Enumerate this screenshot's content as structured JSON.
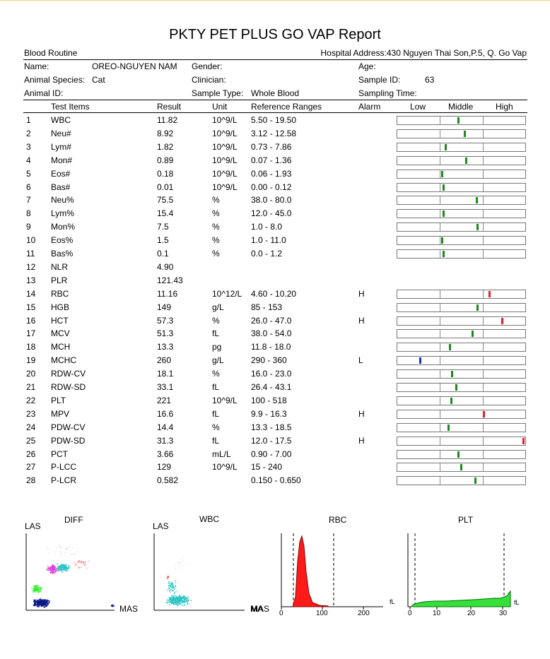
{
  "report": {
    "title": "PKTY PET PLUS GO VAP Report",
    "section": "Blood Routine",
    "hospital_address": "Hospital Address:430 Nguyen Thai Son,P.5, Q. Go Vap"
  },
  "patient": {
    "name_label": "Name:",
    "name_value": "OREO-NGUYEN NAM",
    "gender_label": "Gender:",
    "gender_value": "",
    "age_label": "Age:",
    "age_value": "",
    "species_label": "Animal Species:",
    "species_value": "Cat",
    "clinician_label": "Clinician:",
    "clinician_value": "",
    "sample_id_label": "Sample ID:",
    "sample_id_value": "63",
    "animal_id_label": "Animal ID:",
    "animal_id_value": "",
    "sample_type_label": "Sample Type:",
    "sample_type_value": "Whole Blood",
    "sampling_time_label": "Sampling Time:",
    "sampling_time_value": ""
  },
  "table": {
    "headers": {
      "test_items": "Test Items",
      "result": "Result",
      "unit": "Unit",
      "reference": "Reference Ranges",
      "alarm": "Alarm",
      "low": "Low",
      "middle": "Middle",
      "high": "High"
    },
    "rows": [
      {
        "no": "1",
        "item": "WBC",
        "result": "11.82",
        "unit": "10^9/L",
        "ref": "5.50 - 19.50",
        "alarm": "",
        "pos": 0.48,
        "color": "#1a8a1a"
      },
      {
        "no": "2",
        "item": "Neu#",
        "result": "8.92",
        "unit": "10^9/L",
        "ref": "3.12 - 12.58",
        "alarm": "",
        "pos": 0.53,
        "color": "#1a8a1a"
      },
      {
        "no": "3",
        "item": "Lym#",
        "result": "1.82",
        "unit": "10^9/L",
        "ref": "0.73 - 7.86",
        "alarm": "",
        "pos": 0.38,
        "color": "#1a8a1a"
      },
      {
        "no": "4",
        "item": "Mon#",
        "result": "0.89",
        "unit": "10^9/L",
        "ref": "0.07 - 1.36",
        "alarm": "",
        "pos": 0.54,
        "color": "#1a8a1a"
      },
      {
        "no": "5",
        "item": "Eos#",
        "result": "0.18",
        "unit": "10^9/L",
        "ref": "0.06 - 1.93",
        "alarm": "",
        "pos": 0.35,
        "color": "#1a8a1a"
      },
      {
        "no": "6",
        "item": "Bas#",
        "result": "0.01",
        "unit": "10^9/L",
        "ref": "0.00 - 0.12",
        "alarm": "",
        "pos": 0.36,
        "color": "#1a8a1a"
      },
      {
        "no": "7",
        "item": "Neu%",
        "result": "75.5",
        "unit": "%",
        "ref": "38.0 - 80.0",
        "alarm": "",
        "pos": 0.62,
        "color": "#1a8a1a"
      },
      {
        "no": "8",
        "item": "Lym%",
        "result": "15.4",
        "unit": "%",
        "ref": "12.0 - 45.0",
        "alarm": "",
        "pos": 0.36,
        "color": "#1a8a1a"
      },
      {
        "no": "9",
        "item": "Mon%",
        "result": "7.5",
        "unit": "%",
        "ref": "1.0 - 8.0",
        "alarm": "",
        "pos": 0.63,
        "color": "#1a8a1a"
      },
      {
        "no": "10",
        "item": "Eos%",
        "result": "1.5",
        "unit": "%",
        "ref": "1.0 - 11.0",
        "alarm": "",
        "pos": 0.35,
        "color": "#1a8a1a"
      },
      {
        "no": "11",
        "item": "Bas%",
        "result": "0.1",
        "unit": "%",
        "ref": "0.0 - 1.2",
        "alarm": "",
        "pos": 0.36,
        "color": "#1a8a1a"
      },
      {
        "no": "12",
        "item": "NLR",
        "result": "4.90",
        "unit": "",
        "ref": "",
        "alarm": "",
        "pos": null,
        "color": ""
      },
      {
        "no": "13",
        "item": "PLR",
        "result": "121.43",
        "unit": "",
        "ref": "",
        "alarm": "",
        "pos": null,
        "color": ""
      },
      {
        "no": "14",
        "item": "RBC",
        "result": "11.16",
        "unit": "10^12/L",
        "ref": "4.60 - 10.20",
        "alarm": "H",
        "pos": 0.72,
        "color": "#e0202a"
      },
      {
        "no": "15",
        "item": "HGB",
        "result": "149",
        "unit": "g/L",
        "ref": "85 - 153",
        "alarm": "",
        "pos": 0.63,
        "color": "#1a8a1a"
      },
      {
        "no": "16",
        "item": "HCT",
        "result": "57.3",
        "unit": "%",
        "ref": "26.0 - 47.0",
        "alarm": "H",
        "pos": 0.82,
        "color": "#e0202a"
      },
      {
        "no": "17",
        "item": "MCV",
        "result": "51.3",
        "unit": "fL",
        "ref": "38.0 - 54.0",
        "alarm": "",
        "pos": 0.59,
        "color": "#1a8a1a"
      },
      {
        "no": "18",
        "item": "MCH",
        "result": "13.3",
        "unit": "pg",
        "ref": "11.8 - 18.0",
        "alarm": "",
        "pos": 0.41,
        "color": "#1a8a1a"
      },
      {
        "no": "19",
        "item": "MCHC",
        "result": "260",
        "unit": "g/L",
        "ref": "290 - 360",
        "alarm": "L",
        "pos": 0.18,
        "color": "#1530c8"
      },
      {
        "no": "20",
        "item": "RDW-CV",
        "result": "18.1",
        "unit": "%",
        "ref": "16.0 - 23.0",
        "alarm": "",
        "pos": 0.43,
        "color": "#1a8a1a"
      },
      {
        "no": "21",
        "item": "RDW-SD",
        "result": "33.1",
        "unit": "fL",
        "ref": "26.4 - 43.1",
        "alarm": "",
        "pos": 0.46,
        "color": "#1a8a1a"
      },
      {
        "no": "22",
        "item": "PLT",
        "result": "221",
        "unit": "10^9/L",
        "ref": "100 - 518",
        "alarm": "",
        "pos": 0.42,
        "color": "#1a8a1a"
      },
      {
        "no": "23",
        "item": "MPV",
        "result": "16.6",
        "unit": "fL",
        "ref": "9.9 - 16.3",
        "alarm": "H",
        "pos": 0.68,
        "color": "#e0202a"
      },
      {
        "no": "24",
        "item": "PDW-CV",
        "result": "14.4",
        "unit": "%",
        "ref": "13.3 - 18.5",
        "alarm": "",
        "pos": 0.4,
        "color": "#1a8a1a"
      },
      {
        "no": "25",
        "item": "PDW-SD",
        "result": "31.3",
        "unit": "fL",
        "ref": "12.0 - 17.5",
        "alarm": "H",
        "pos": 0.99,
        "color": "#e0202a"
      },
      {
        "no": "26",
        "item": "PCT",
        "result": "3.66",
        "unit": "mL/L",
        "ref": "0.90 - 7.00",
        "alarm": "",
        "pos": 0.48,
        "color": "#1a8a1a"
      },
      {
        "no": "27",
        "item": "P-LCC",
        "result": "129",
        "unit": "10^9/L",
        "ref": "15 - 240",
        "alarm": "",
        "pos": 0.5,
        "color": "#1a8a1a"
      },
      {
        "no": "28",
        "item": "P-LCR",
        "result": "0.582",
        "unit": "",
        "ref": "0.150 - 0.650",
        "alarm": "",
        "pos": 0.61,
        "color": "#1a8a1a"
      }
    ]
  },
  "plots": {
    "diff": {
      "title": "DIFF",
      "ylabel": "LAS",
      "xlabel": "MAS"
    },
    "wbc": {
      "title": "WBC",
      "ylabel": "LAS",
      "xlabel": "MAS"
    },
    "rbc": {
      "title": "RBC",
      "xlabel": "fL",
      "ticks": [
        "0",
        "100",
        "200"
      ]
    },
    "plt": {
      "title": "PLT",
      "xlabel": "fL",
      "ticks": [
        "0",
        "10",
        "20",
        "30"
      ]
    }
  }
}
